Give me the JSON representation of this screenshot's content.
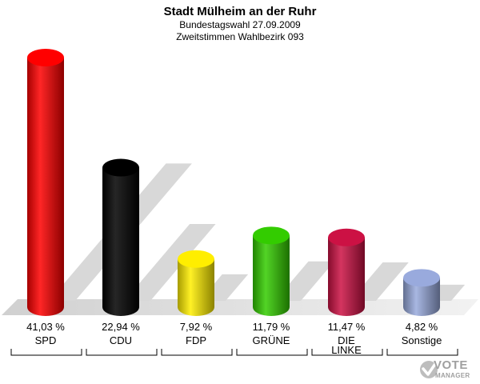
{
  "chart_data": {
    "type": "bar",
    "title": "Stadt Mülheim an der Ruhr",
    "subtitle1": "Bundestagswahl 27.09.2009",
    "subtitle2": "Zweitstimmen Wahlbezirk 093",
    "categories": [
      "SPD",
      "CDU",
      "FDP",
      "GRÜNE",
      "DIE LINKE",
      "Sonstige"
    ],
    "value_labels": [
      "41,03 %",
      "22,94 %",
      "7,92 %",
      "11,79 %",
      "11,47 %",
      "4,82 %"
    ],
    "values": [
      41.03,
      22.94,
      7.92,
      11.79,
      11.47,
      4.82
    ],
    "colors": [
      "#ff0000",
      "#000000",
      "#ffee00",
      "#33cc00",
      "#cc1144",
      "#99aadd"
    ],
    "ylim": [
      0,
      41.03
    ],
    "grid": false,
    "legend": "none"
  },
  "logo": {
    "line1": "VOTE",
    "line2": "MANAGER"
  }
}
